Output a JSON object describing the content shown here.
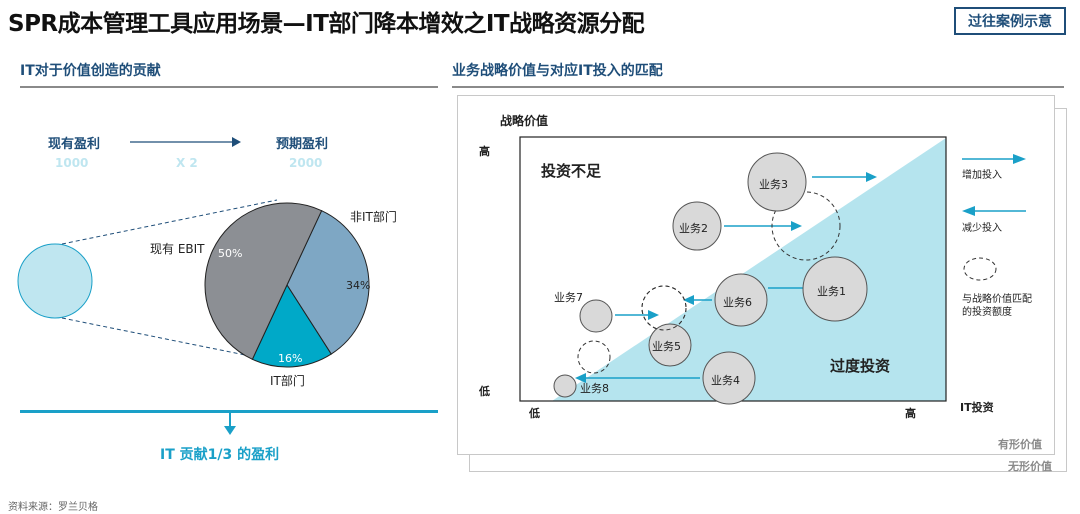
{
  "header": {
    "title": "SPR成本管理工具应用场景—IT部门降本增效之IT战略资源分配",
    "case_button": "过往案例示意"
  },
  "left": {
    "title": "IT对于价值创造的贡献",
    "current_profit_label": "现有盈利",
    "expected_profit_label": "预期盈利",
    "current_profit_value": "1000",
    "multiplier": "X 2",
    "expected_profit_value": "2000",
    "ebit_label": "现有 EBIT",
    "pie": [
      {
        "name": "非IT部门",
        "value": 34,
        "label": "34%"
      },
      {
        "name": "IT部门",
        "value": 16,
        "label": "16%"
      },
      {
        "name": "现有 EBIT",
        "value": 50,
        "label": "50%"
      }
    ],
    "non_it_label": "非IT部门",
    "it_label": "IT部门",
    "conclusion": "IT 贡献1/3 的盈利"
  },
  "right": {
    "title": "业务战略价值与对应IT投入的匹配",
    "y_axis_label": "战略价值",
    "y_high": "高",
    "y_low": "低",
    "x_low": "低",
    "x_high": "高",
    "x_axis_label": "IT投资",
    "under_invest": "投资不足",
    "over_invest": "过度投资",
    "businesses": [
      "业务1",
      "业务2",
      "业务3",
      "业务4",
      "业务5",
      "业务6",
      "业务7",
      "业务8"
    ],
    "legend": {
      "increase": "增加投入",
      "decrease": "减少投入",
      "match_line1": "与战略价值匹配",
      "match_line2": "的投资额度"
    },
    "tangible": "有形价值",
    "intangible": "无形价值"
  },
  "source": "资料来源：罗兰贝格",
  "colors": {
    "navy": "#1f4e79",
    "cyan": "#1aa0c8",
    "light_cyan": "#b5e4ee",
    "pie_gray": "#8c8f94",
    "pie_blue": "#7ea7c4",
    "pie_teal": "#00a9c8",
    "bubble_gray": "#d9d9d9"
  }
}
